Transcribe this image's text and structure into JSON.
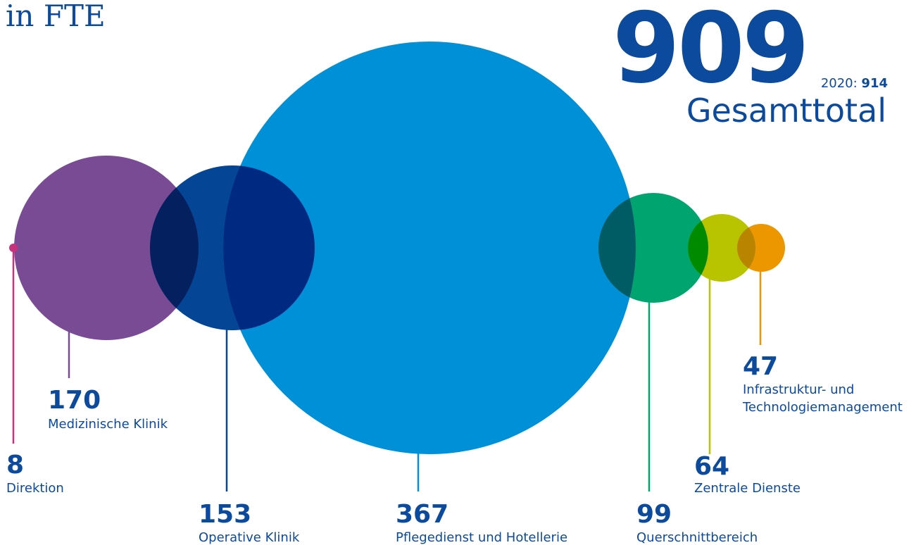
{
  "header": {
    "unit": "in FTE",
    "total_value": "909",
    "total_label": "Gesamttotal",
    "prev_year_label": "2020:",
    "prev_year_value": "914"
  },
  "chart_data": {
    "type": "bubble",
    "unit": "FTE",
    "total": 909,
    "previous_total": {
      "year": 2020,
      "value": 914
    },
    "items": [
      {
        "value": 8,
        "label": [
          "Direktion"
        ],
        "color": "#c8327c"
      },
      {
        "value": 170,
        "label": [
          "Medizinische Klinik"
        ],
        "color": "#7a4b95"
      },
      {
        "value": 153,
        "label": [
          "Operative Klinik"
        ],
        "color": "#054595"
      },
      {
        "value": 367,
        "label": [
          "Pflegedienst und Hotellerie"
        ],
        "color": "#0090d8"
      },
      {
        "value": 99,
        "label": [
          "Querschnittbereich"
        ],
        "color": "#00a46e"
      },
      {
        "value": 64,
        "label": [
          "Zentrale Dienste"
        ],
        "color": "#b8c400"
      },
      {
        "value": 47,
        "label": [
          "Infrastruktur- und",
          "Technologiemanagement"
        ],
        "color": "#ec9600"
      }
    ],
    "overlap_colors": {
      "purple_blue": "#05205e",
      "navy_cyan": "#002a82",
      "cyan_green": "#005c64",
      "green_lime": "#008a00",
      "lime_orange": "#b98400"
    }
  }
}
